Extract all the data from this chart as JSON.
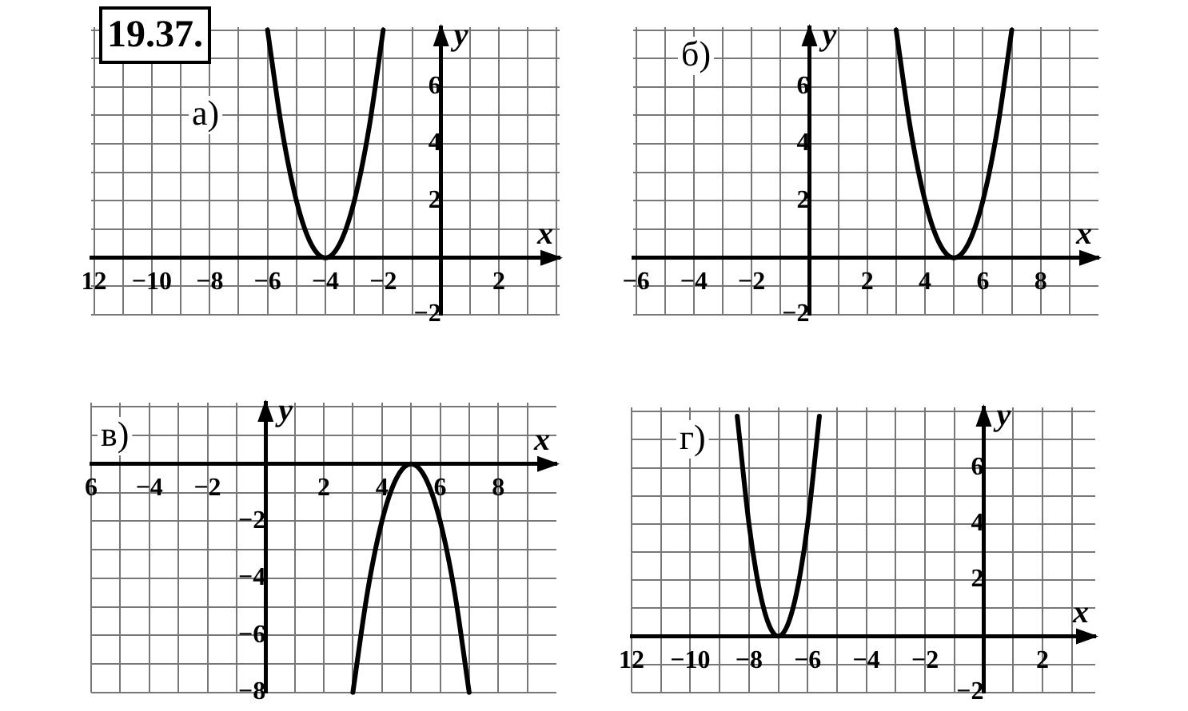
{
  "chart_data": [
    {
      "type": "line",
      "title": "а)",
      "annotations": [
        "19.37."
      ],
      "xlabel": "x",
      "ylabel": "y",
      "xlim": [
        -12.1,
        4.1
      ],
      "ylim": [
        -2,
        8.1
      ],
      "grid": true,
      "marker": "none",
      "xticks": [
        {
          "value": -12,
          "label": "12"
        },
        {
          "value": -11,
          "label": null
        },
        {
          "value": -10,
          "label": "−10"
        },
        {
          "value": -9,
          "label": null
        },
        {
          "value": -8,
          "label": "−8"
        },
        {
          "value": -7,
          "label": null
        },
        {
          "value": -6,
          "label": "−6"
        },
        {
          "value": -5,
          "label": null
        },
        {
          "value": -4,
          "label": "−4"
        },
        {
          "value": -3,
          "label": null
        },
        {
          "value": -2,
          "label": "−2"
        },
        {
          "value": -1,
          "label": null
        },
        {
          "value": 0,
          "label": null
        },
        {
          "value": 1,
          "label": null
        },
        {
          "value": 2,
          "label": "2"
        },
        {
          "value": 3,
          "label": null
        },
        {
          "value": 4,
          "label": null
        }
      ],
      "yticks": [
        {
          "value": -2,
          "label": "−2"
        },
        {
          "value": -1,
          "label": null
        },
        {
          "value": 0,
          "label": null
        },
        {
          "value": 1,
          "label": null
        },
        {
          "value": 2,
          "label": "2"
        },
        {
          "value": 3,
          "label": null
        },
        {
          "value": 4,
          "label": "4"
        },
        {
          "value": 5,
          "label": null
        },
        {
          "value": 6,
          "label": "6"
        },
        {
          "value": 7,
          "label": null
        },
        {
          "value": 8,
          "label": null
        }
      ],
      "series": [
        {
          "color": "#000000",
          "x": [
            -6,
            -5.5,
            -5,
            -4.5,
            -4,
            -3.5,
            -3,
            -2.5,
            -2
          ],
          "values": [
            8,
            4.5,
            2,
            0.5,
            0,
            0.5,
            2,
            4.5,
            8
          ]
        }
      ]
    },
    {
      "type": "line",
      "title": "б)",
      "xlabel": "x",
      "ylabel": "y",
      "xlim": [
        -6.1,
        10
      ],
      "ylim": [
        -2,
        8.1
      ],
      "grid": true,
      "marker": "none",
      "xticks": [
        {
          "value": -6,
          "label": "−6"
        },
        {
          "value": -5,
          "label": null
        },
        {
          "value": -4,
          "label": "−4"
        },
        {
          "value": -3,
          "label": null
        },
        {
          "value": -2,
          "label": "−2"
        },
        {
          "value": -1,
          "label": null
        },
        {
          "value": 0,
          "label": null
        },
        {
          "value": 1,
          "label": null
        },
        {
          "value": 2,
          "label": "2"
        },
        {
          "value": 3,
          "label": null
        },
        {
          "value": 4,
          "label": "4"
        },
        {
          "value": 5,
          "label": null
        },
        {
          "value": 6,
          "label": "6"
        },
        {
          "value": 7,
          "label": null
        },
        {
          "value": 8,
          "label": "8"
        },
        {
          "value": 9,
          "label": null
        }
      ],
      "yticks": [
        {
          "value": -2,
          "label": "−2"
        },
        {
          "value": -1,
          "label": null
        },
        {
          "value": 0,
          "label": null
        },
        {
          "value": 1,
          "label": null
        },
        {
          "value": 2,
          "label": "2"
        },
        {
          "value": 3,
          "label": null
        },
        {
          "value": 4,
          "label": "4"
        },
        {
          "value": 5,
          "label": null
        },
        {
          "value": 6,
          "label": "6"
        },
        {
          "value": 7,
          "label": null
        },
        {
          "value": 8,
          "label": null
        }
      ],
      "series": [
        {
          "color": "#000000",
          "x": [
            3,
            3.5,
            4,
            4.5,
            5,
            5.5,
            6,
            6.5,
            7
          ],
          "values": [
            8,
            4.5,
            2,
            0.5,
            0,
            0.5,
            2,
            4.5,
            8
          ]
        }
      ]
    },
    {
      "type": "line",
      "title": "в)",
      "xlabel": "x",
      "ylabel": "y",
      "xlim": [
        -6,
        10
      ],
      "ylim": [
        -8,
        2.15
      ],
      "grid": true,
      "marker": "none",
      "xticks": [
        {
          "value": -6,
          "label": "6"
        },
        {
          "value": -5,
          "label": null
        },
        {
          "value": -4,
          "label": "−4"
        },
        {
          "value": -3,
          "label": null
        },
        {
          "value": -2,
          "label": "−2"
        },
        {
          "value": -1,
          "label": null
        },
        {
          "value": 0,
          "label": null
        },
        {
          "value": 1,
          "label": null
        },
        {
          "value": 2,
          "label": "2"
        },
        {
          "value": 3,
          "label": null
        },
        {
          "value": 4,
          "label": "4"
        },
        {
          "value": 5,
          "label": null
        },
        {
          "value": 6,
          "label": "6"
        },
        {
          "value": 7,
          "label": null
        },
        {
          "value": 8,
          "label": "8"
        },
        {
          "value": 9,
          "label": null
        }
      ],
      "yticks": [
        {
          "value": -8,
          "label": "−8"
        },
        {
          "value": -7,
          "label": null
        },
        {
          "value": -6,
          "label": "−6"
        },
        {
          "value": -5,
          "label": null
        },
        {
          "value": -4,
          "label": "−4"
        },
        {
          "value": -3,
          "label": null
        },
        {
          "value": -2,
          "label": "−2"
        },
        {
          "value": -1,
          "label": null
        },
        {
          "value": 0,
          "label": null
        },
        {
          "value": 1,
          "label": null
        },
        {
          "value": 2,
          "label": null
        }
      ],
      "series": [
        {
          "color": "#000000",
          "x": [
            3,
            3.5,
            4,
            4.5,
            5,
            5.5,
            6,
            6.5,
            7
          ],
          "values": [
            -8,
            -4.5,
            -2,
            -0.5,
            0,
            -0.5,
            -2,
            -4.5,
            -8
          ]
        }
      ]
    },
    {
      "type": "line",
      "title": "г)",
      "xlabel": "x",
      "ylabel": "y",
      "xlim": [
        -12,
        3.8
      ],
      "ylim": [
        -2,
        8.15
      ],
      "grid": true,
      "marker": "none",
      "xticks": [
        {
          "value": -12,
          "label": "12"
        },
        {
          "value": -11,
          "label": null
        },
        {
          "value": -10,
          "label": "−10"
        },
        {
          "value": -9,
          "label": null
        },
        {
          "value": -8,
          "label": "−8"
        },
        {
          "value": -7,
          "label": null
        },
        {
          "value": -6,
          "label": "−6"
        },
        {
          "value": -5,
          "label": null
        },
        {
          "value": -4,
          "label": "−4"
        },
        {
          "value": -3,
          "label": null
        },
        {
          "value": -2,
          "label": "−2"
        },
        {
          "value": -1,
          "label": null
        },
        {
          "value": 0,
          "label": null
        },
        {
          "value": 1,
          "label": null
        },
        {
          "value": 2,
          "label": "2"
        },
        {
          "value": 3,
          "label": null
        }
      ],
      "yticks": [
        {
          "value": -2,
          "label": "−2"
        },
        {
          "value": -1,
          "label": null
        },
        {
          "value": 0,
          "label": null
        },
        {
          "value": 1,
          "label": null
        },
        {
          "value": 2,
          "label": "2"
        },
        {
          "value": 3,
          "label": null
        },
        {
          "value": 4,
          "label": "4"
        },
        {
          "value": 5,
          "label": null
        },
        {
          "value": 6,
          "label": "6"
        },
        {
          "value": 7,
          "label": null
        },
        {
          "value": 8,
          "label": null
        }
      ],
      "series": [
        {
          "color": "#000000",
          "x": [
            -8.4,
            -8,
            -7.75,
            -7.5,
            -7.25,
            -7,
            -6.75,
            -6.5,
            -6.25,
            -6,
            -5.6
          ],
          "values": [
            7.84,
            4,
            2.25,
            1,
            0.25,
            0,
            0.25,
            1,
            2.25,
            4,
            7.84
          ]
        }
      ]
    }
  ]
}
